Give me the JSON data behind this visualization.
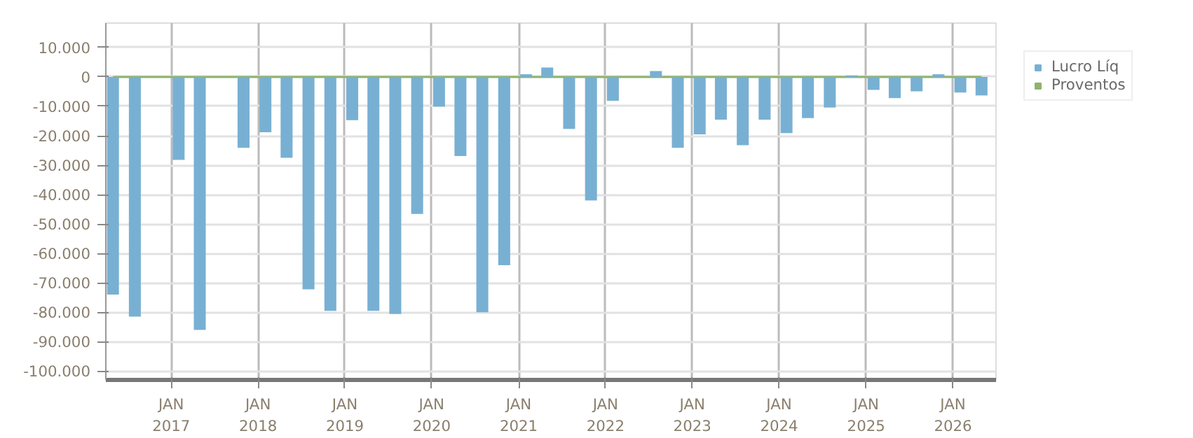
{
  "chart_data": {
    "type": "bar",
    "x": [
      "2016-05",
      "2016-08",
      "2016-11",
      "2017-02",
      "2017-05",
      "2017-08",
      "2017-11",
      "2018-02",
      "2018-05",
      "2018-08",
      "2018-11",
      "2019-02",
      "2019-05",
      "2019-08",
      "2019-11",
      "2020-02",
      "2020-05",
      "2020-08",
      "2020-11",
      "2021-02",
      "2021-05",
      "2021-08",
      "2021-11",
      "2022-02",
      "2022-05",
      "2022-08",
      "2022-11",
      "2023-02",
      "2023-05",
      "2023-08",
      "2023-11",
      "2024-02",
      "2024-05",
      "2024-08",
      "2024-11",
      "2025-02",
      "2025-05",
      "2025-08",
      "2025-11",
      "2026-02",
      "2026-05"
    ],
    "series": [
      {
        "name": "Lucro Líq",
        "color": "#78b0d3",
        "values": [
          -74000,
          -81500,
          null,
          -28200,
          -86000,
          null,
          -24100,
          -18800,
          -27500,
          -72200,
          -79500,
          -14700,
          -79500,
          -80600,
          -46600,
          -10100,
          -26900,
          -80000,
          -64000,
          900,
          3200,
          -17700,
          -42000,
          -8100,
          null,
          2000,
          -24100,
          -19500,
          -14500,
          -23200,
          -14500,
          -19100,
          -14000,
          -10400,
          500,
          -4400,
          -7200,
          -4900,
          900,
          -5300,
          -6300
        ]
      },
      {
        "name": "Proventos",
        "color": "#8db36b",
        "type": "line",
        "values": [
          0,
          0,
          0,
          0,
          0,
          0,
          0,
          0,
          0,
          0,
          0,
          0,
          0,
          0,
          0,
          0,
          0,
          0,
          0,
          0,
          0,
          0,
          0,
          0,
          0,
          0,
          0,
          0,
          0,
          0,
          0,
          0,
          0,
          0,
          0,
          0,
          0,
          0,
          0,
          0,
          0
        ]
      }
    ],
    "xlim": [
      "2016-04-01",
      "2026-07-01"
    ],
    "xticks": [
      {
        "value": "2017-01-01",
        "label": "JAN\n2017"
      },
      {
        "value": "2018-01-01",
        "label": "JAN\n2018"
      },
      {
        "value": "2019-01-01",
        "label": "JAN\n2019"
      },
      {
        "value": "2020-01-01",
        "label": "JAN\n2020"
      },
      {
        "value": "2021-01-01",
        "label": "JAN\n2021"
      },
      {
        "value": "2022-01-01",
        "label": "JAN\n2022"
      },
      {
        "value": "2023-01-01",
        "label": "JAN\n2023"
      },
      {
        "value": "2024-01-01",
        "label": "JAN\n2024"
      },
      {
        "value": "2025-01-01",
        "label": "JAN\n2025"
      },
      {
        "value": "2026-01-01",
        "label": "JAN\n2026"
      }
    ],
    "ylim": [
      -103000,
      18300
    ],
    "yticks": [
      {
        "value": 10000,
        "label": "10.000"
      },
      0,
      {
        "value": -10000,
        "label": "-10.000"
      },
      {
        "value": -20000,
        "label": "-20.000"
      },
      {
        "value": -30000,
        "label": "-30.000"
      },
      {
        "value": -40000,
        "label": "-40.000"
      },
      {
        "value": -50000,
        "label": "-50.000"
      },
      {
        "value": -60000,
        "label": "-60.000"
      },
      {
        "value": -70000,
        "label": "-70.000"
      },
      {
        "value": -80000,
        "label": "-80.000"
      },
      {
        "value": -90000,
        "label": "-90.000"
      },
      {
        "value": -100000,
        "label": "-100.000"
      }
    ],
    "grid": true,
    "legend": "top right"
  }
}
